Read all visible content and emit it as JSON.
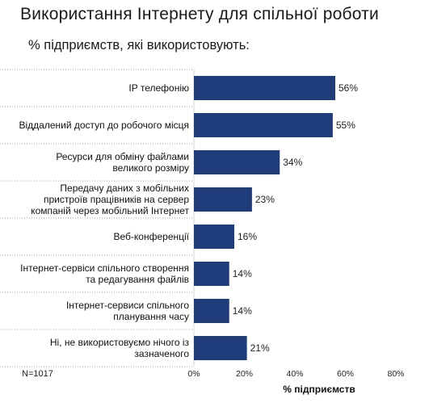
{
  "title": "Використання Інтернету для спільної роботи",
  "subtitle": "% підприємств, які використовують:",
  "note": "N=1017",
  "colors": {
    "bar": "#1f3d7a",
    "separator": "#9aa0a8",
    "grid_line": "#d0d0d0"
  },
  "chart_data": {
    "type": "bar",
    "orientation": "horizontal",
    "categories": [
      [
        "IP телефонію"
      ],
      [
        "Віддалений доступ до робочого місця"
      ],
      [
        "Ресурси для обміну файлами",
        "великого розміру"
      ],
      [
        "Передачу даних з мобільних",
        "пристроїв працівників на сервер",
        "компаній через мобільний Інтернет"
      ],
      [
        "Веб-конференції"
      ],
      [
        "Інтернет-сервіси спільного створення",
        "та редагування файлів"
      ],
      [
        "Інтернет-сервиси спільного",
        "планування часу"
      ],
      [
        "Ні, не використовуємо нічого із",
        "зазначеного"
      ]
    ],
    "values": [
      56,
      55,
      34,
      23,
      16,
      14,
      14,
      21
    ],
    "value_labels": [
      "56%",
      "55%",
      "34%",
      "23%",
      "16%",
      "14%",
      "14%",
      "21%"
    ],
    "xlim": [
      0,
      80
    ],
    "xticks": [
      0,
      20,
      40,
      60,
      80
    ],
    "xtick_labels": [
      "0%",
      "20%",
      "40%",
      "60%",
      "80%"
    ],
    "xlabel": "% підприємств",
    "ylabel": "",
    "grid": false,
    "legend": "none"
  }
}
